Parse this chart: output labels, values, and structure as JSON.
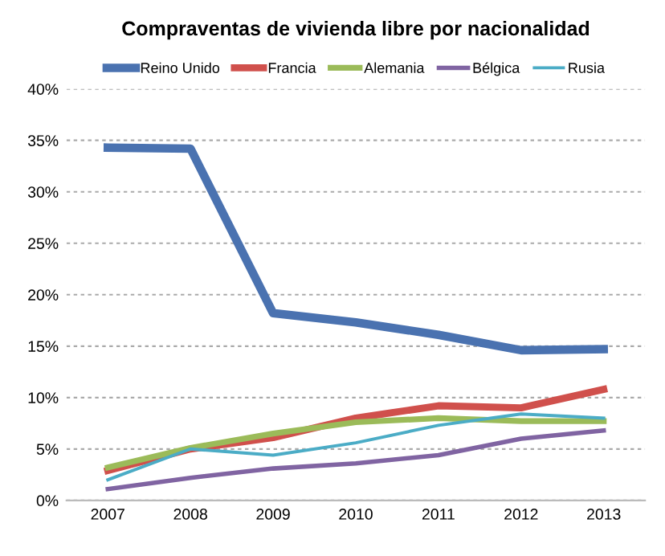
{
  "chart_data": {
    "type": "line",
    "title": "Compraventas de vivienda libre por nacionalidad",
    "categories": [
      "2007",
      "2008",
      "2009",
      "2010",
      "2011",
      "2012",
      "2013"
    ],
    "series": [
      {
        "name": "Reino Unido",
        "color": "#4a72b0",
        "values": [
          34.3,
          34.2,
          18.2,
          17.3,
          16.1,
          14.6,
          14.7
        ]
      },
      {
        "name": "Francia",
        "color": "#d0504c",
        "values": [
          2.9,
          5.0,
          6.1,
          8.0,
          9.2,
          9.0,
          10.8
        ]
      },
      {
        "name": "Alemania",
        "color": "#9bbb59",
        "values": [
          3.2,
          5.1,
          6.5,
          7.6,
          8.0,
          7.7,
          7.7
        ]
      },
      {
        "name": "Bélgica",
        "color": "#8064a2",
        "values": [
          1.1,
          2.2,
          3.1,
          3.6,
          4.4,
          6.0,
          6.8
        ]
      },
      {
        "name": "Rusia",
        "color": "#4bacc6",
        "values": [
          2.0,
          5.0,
          4.4,
          5.6,
          7.3,
          8.4,
          8.0
        ]
      }
    ],
    "ylim": [
      0,
      40
    ],
    "yticks": [
      {
        "value": 0,
        "label": "0%"
      },
      {
        "value": 5,
        "label": "5%"
      },
      {
        "value": 10,
        "label": "10%"
      },
      {
        "value": 15,
        "label": "15%"
      },
      {
        "value": 20,
        "label": "20%"
      },
      {
        "value": 25,
        "label": "25%"
      },
      {
        "value": 30,
        "label": "30%"
      },
      {
        "value": 35,
        "label": "35%"
      },
      {
        "value": 40,
        "label": "40%"
      }
    ],
    "grid": "y",
    "legend": "top",
    "marker": "none",
    "line_style": "solid"
  }
}
